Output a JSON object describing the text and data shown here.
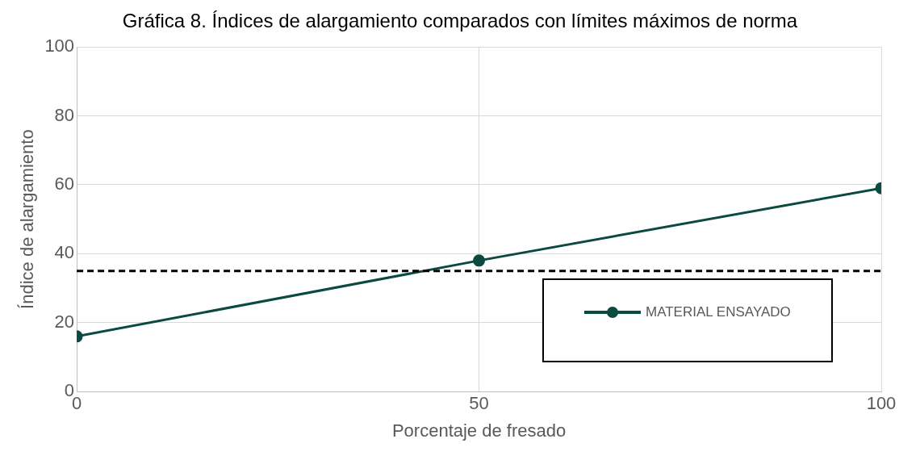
{
  "chart_data": {
    "type": "line",
    "title": "Gráfica 8. Índices de alargamiento comparados con límites máximos de norma",
    "xlabel": "Porcentaje de fresado",
    "ylabel": "Índice de alargamiento",
    "x": [
      0,
      50,
      100
    ],
    "series": [
      {
        "name": "MATERIAL ENSAYADO",
        "color": "#0b4a40",
        "values": [
          16,
          38,
          59
        ]
      }
    ],
    "xlim": [
      0,
      100
    ],
    "xticks": [
      0,
      50,
      100
    ],
    "ylim": [
      0,
      100
    ],
    "yticks": [
      0,
      20,
      40,
      60,
      80,
      100
    ],
    "ref_lines": [
      {
        "axis": "y",
        "value": 35,
        "color": "#000000",
        "line_style": "dashed"
      }
    ],
    "grid": true,
    "legend": "bottom right",
    "marker": "circle",
    "line_style": "solid"
  }
}
